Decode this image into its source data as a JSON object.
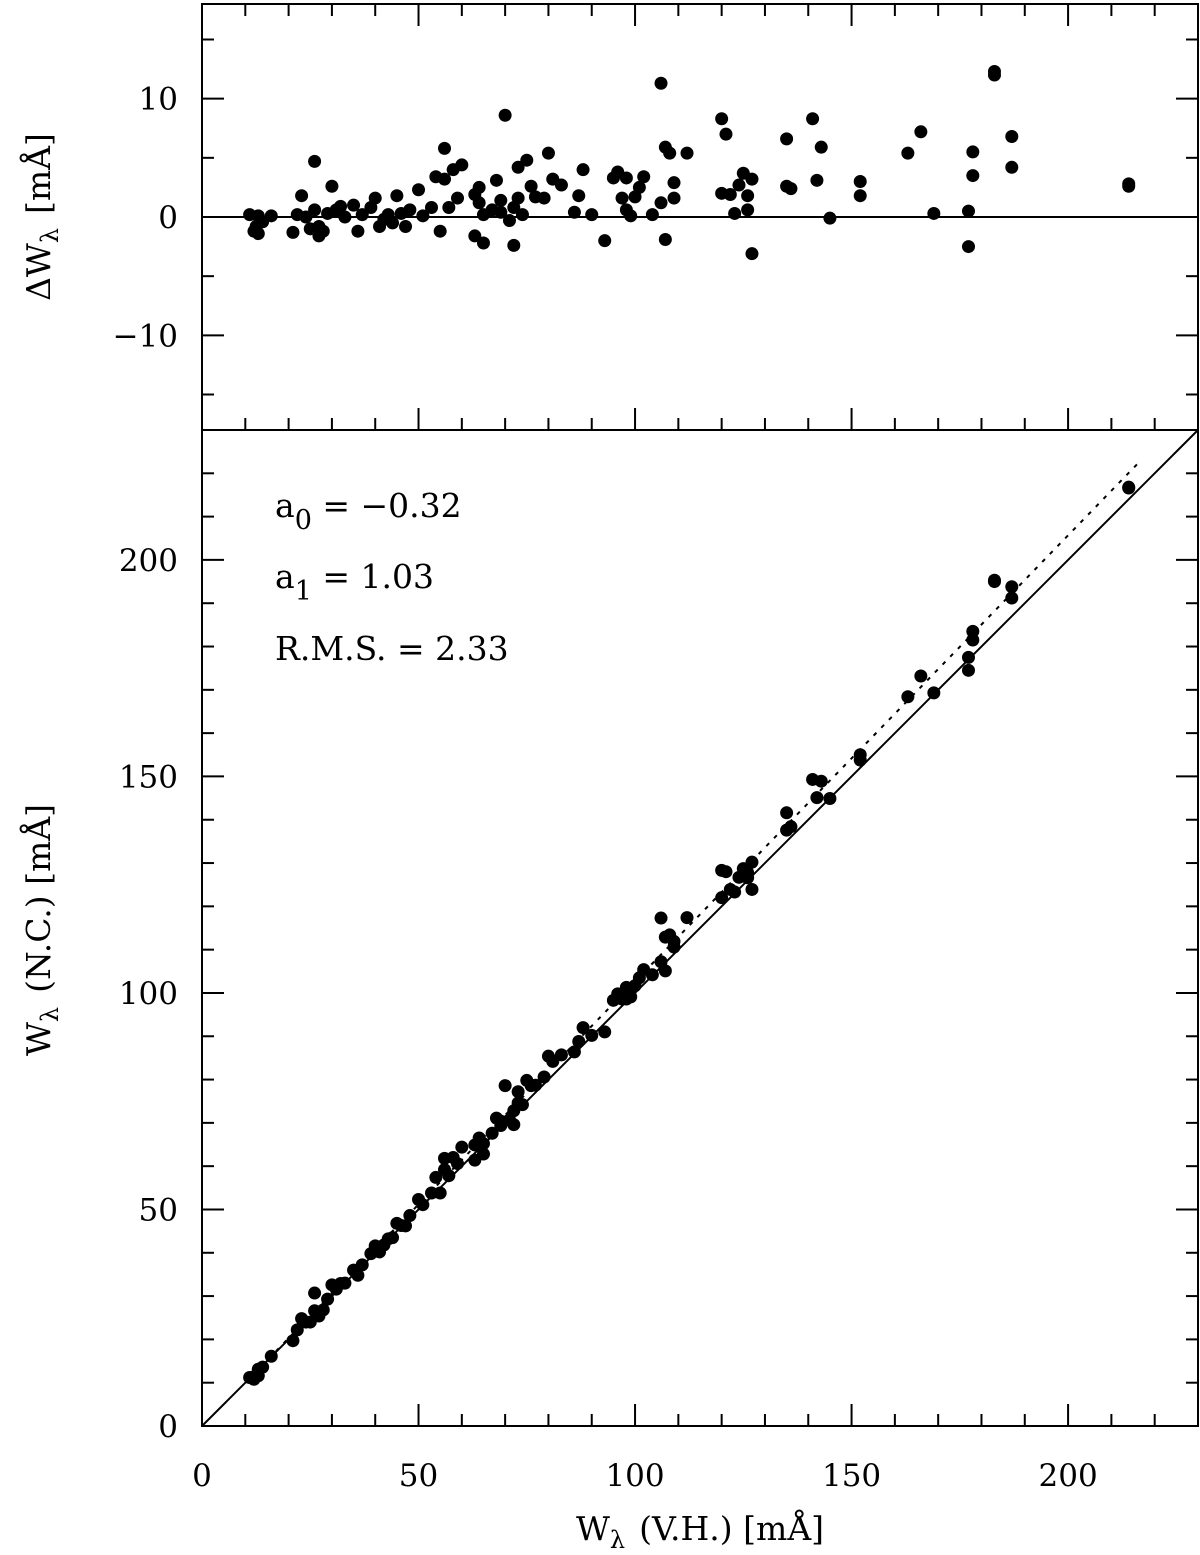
{
  "chart_data": [
    {
      "panel": "residuals",
      "type": "scatter",
      "ylabel": "ΔW_λ [mÅ]",
      "ylim": [
        -18,
        18
      ],
      "xlim": [
        0,
        230
      ],
      "yticks": [
        -10,
        0,
        10
      ],
      "ytick_labels": [
        "−10",
        "0",
        "10"
      ],
      "reference_line_y": 0,
      "points": [
        [
          11,
          0.2
        ],
        [
          12,
          -1.2
        ],
        [
          12.5,
          -0.8
        ],
        [
          13,
          -1.4
        ],
        [
          13,
          0.1
        ],
        [
          14,
          -0.4
        ],
        [
          16,
          0.1
        ],
        [
          21,
          -1.3
        ],
        [
          22,
          0.2
        ],
        [
          23,
          1.8
        ],
        [
          24,
          0
        ],
        [
          25,
          -1
        ],
        [
          26,
          0.6
        ],
        [
          26,
          4.7
        ],
        [
          27,
          -0.8
        ],
        [
          27,
          -1.6
        ],
        [
          28,
          -1.2
        ],
        [
          29,
          0.3
        ],
        [
          30,
          2.6
        ],
        [
          31,
          0.6
        ],
        [
          32,
          0.9
        ],
        [
          33,
          0
        ],
        [
          35,
          1
        ],
        [
          36,
          -1.2
        ],
        [
          37,
          0.2
        ],
        [
          39,
          0.8
        ],
        [
          40,
          1.6
        ],
        [
          41,
          -0.8
        ],
        [
          42,
          -0.2
        ],
        [
          43,
          0.2
        ],
        [
          44,
          -0.5
        ],
        [
          45,
          1.8
        ],
        [
          46,
          0.3
        ],
        [
          47,
          -0.8
        ],
        [
          48,
          0.6
        ],
        [
          50,
          2.3
        ],
        [
          51,
          0.1
        ],
        [
          53,
          0.8
        ],
        [
          54,
          3.4
        ],
        [
          55,
          -1.2
        ],
        [
          56,
          5.8
        ],
        [
          56,
          3.2
        ],
        [
          57,
          0.8
        ],
        [
          58,
          4
        ],
        [
          59,
          1.6
        ],
        [
          60,
          4.4
        ],
        [
          63,
          -1.6
        ],
        [
          63,
          1.9
        ],
        [
          64,
          1.2
        ],
        [
          64,
          2.5
        ],
        [
          65,
          -2.2
        ],
        [
          65,
          0.2
        ],
        [
          67,
          0.6
        ],
        [
          68,
          3.1
        ],
        [
          69,
          1.4
        ],
        [
          69,
          0.4
        ],
        [
          70,
          8.6
        ],
        [
          71,
          -0.3
        ],
        [
          72,
          -2.4
        ],
        [
          72,
          0.8
        ],
        [
          73,
          4.2
        ],
        [
          73,
          1.6
        ],
        [
          74,
          0.2
        ],
        [
          75,
          4.8
        ],
        [
          76,
          2.6
        ],
        [
          77,
          1.7
        ],
        [
          79,
          1.6
        ],
        [
          80,
          5.4
        ],
        [
          81,
          3.2
        ],
        [
          83,
          2.7
        ],
        [
          86,
          0.4
        ],
        [
          87,
          1.8
        ],
        [
          88,
          4
        ],
        [
          90,
          0.2
        ],
        [
          93,
          -2
        ],
        [
          95,
          3.3
        ],
        [
          96,
          3.8
        ],
        [
          97,
          1.6
        ],
        [
          98,
          0.6
        ],
        [
          98,
          3.3
        ],
        [
          99,
          0.1
        ],
        [
          100,
          1.7
        ],
        [
          101,
          2.5
        ],
        [
          102,
          3.4
        ],
        [
          104,
          0.2
        ],
        [
          106,
          11.3
        ],
        [
          106,
          1.2
        ],
        [
          107,
          -1.9
        ],
        [
          107,
          5.9
        ],
        [
          108,
          5.4
        ],
        [
          109,
          2.9
        ],
        [
          109,
          1.6
        ],
        [
          112,
          5.4
        ],
        [
          120,
          2
        ],
        [
          120,
          8.3
        ],
        [
          121,
          7
        ],
        [
          122,
          1.9
        ],
        [
          123,
          0.3
        ],
        [
          124,
          2.7
        ],
        [
          125,
          3.7
        ],
        [
          126,
          0.6
        ],
        [
          126,
          1.8
        ],
        [
          127,
          3.2
        ],
        [
          127,
          -3.1
        ],
        [
          135,
          6.6
        ],
        [
          135,
          2.6
        ],
        [
          136,
          2.4
        ],
        [
          141,
          8.3
        ],
        [
          142,
          3.1
        ],
        [
          143,
          5.9
        ],
        [
          145,
          -0.1
        ],
        [
          152,
          3
        ],
        [
          152,
          1.8
        ],
        [
          163,
          5.4
        ],
        [
          166,
          7.2
        ],
        [
          169,
          0.3
        ],
        [
          177,
          -2.5
        ],
        [
          177,
          0.5
        ],
        [
          178,
          5.5
        ],
        [
          178,
          3.5
        ],
        [
          183,
          12.3
        ],
        [
          183,
          12
        ],
        [
          187,
          6.8
        ],
        [
          187,
          4.2
        ],
        [
          214,
          2.8
        ],
        [
          214,
          2.6
        ]
      ]
    },
    {
      "panel": "comparison",
      "type": "scatter",
      "xlabel": "W_λ (V.H.) [mÅ]",
      "ylabel": "W_λ (N.C.) [mÅ]",
      "xlim": [
        0,
        230
      ],
      "ylim": [
        0,
        230
      ],
      "xticks": [
        0,
        50,
        100,
        150,
        200
      ],
      "yticks": [
        0,
        50,
        100,
        150,
        200
      ],
      "reference_line": "y = x",
      "fit_line": {
        "a0": -0.32,
        "a1": 1.03,
        "style": "dotted"
      },
      "annotations": {
        "a0": "a₀ = −0.32",
        "a1": "a₁ = 1.03",
        "rms": "R.M.S. = 2.33"
      },
      "points": [
        [
          11,
          11.2
        ],
        [
          12,
          10.8
        ],
        [
          12.5,
          11.7
        ],
        [
          13,
          11.6
        ],
        [
          13,
          13.1
        ],
        [
          14,
          13.6
        ],
        [
          16,
          16.1
        ],
        [
          21,
          19.7
        ],
        [
          22,
          22.2
        ],
        [
          23,
          24.8
        ],
        [
          24,
          24
        ],
        [
          25,
          24
        ],
        [
          26,
          26.6
        ],
        [
          26,
          30.7
        ],
        [
          27,
          26.2
        ],
        [
          27,
          25.4
        ],
        [
          28,
          26.8
        ],
        [
          29,
          29.3
        ],
        [
          30,
          32.6
        ],
        [
          31,
          31.6
        ],
        [
          32,
          32.9
        ],
        [
          33,
          33
        ],
        [
          35,
          36
        ],
        [
          36,
          34.8
        ],
        [
          37,
          37.2
        ],
        [
          39,
          39.8
        ],
        [
          40,
          41.6
        ],
        [
          41,
          40.2
        ],
        [
          42,
          41.8
        ],
        [
          43,
          43.2
        ],
        [
          44,
          43.5
        ],
        [
          45,
          46.8
        ],
        [
          46,
          46.3
        ],
        [
          47,
          46.2
        ],
        [
          48,
          48.6
        ],
        [
          50,
          52.3
        ],
        [
          51,
          51.1
        ],
        [
          53,
          53.8
        ],
        [
          54,
          57.4
        ],
        [
          55,
          53.8
        ],
        [
          56,
          61.8
        ],
        [
          56,
          59.2
        ],
        [
          57,
          57.8
        ],
        [
          58,
          62
        ],
        [
          59,
          60.6
        ],
        [
          60,
          64.4
        ],
        [
          63,
          61.4
        ],
        [
          63,
          64.9
        ],
        [
          64,
          65.2
        ],
        [
          64,
          66.5
        ],
        [
          65,
          62.8
        ],
        [
          65,
          65.2
        ],
        [
          67,
          67.6
        ],
        [
          68,
          71.1
        ],
        [
          69,
          70.4
        ],
        [
          69,
          69.4
        ],
        [
          70,
          78.6
        ],
        [
          71,
          70.7
        ],
        [
          72,
          69.6
        ],
        [
          72,
          72.8
        ],
        [
          73,
          77.2
        ],
        [
          73,
          74.6
        ],
        [
          74,
          74.2
        ],
        [
          75,
          79.8
        ],
        [
          76,
          78.6
        ],
        [
          77,
          78.7
        ],
        [
          79,
          80.6
        ],
        [
          80,
          85.4
        ],
        [
          81,
          84.2
        ],
        [
          83,
          85.7
        ],
        [
          86,
          86.4
        ],
        [
          87,
          88.8
        ],
        [
          88,
          92
        ],
        [
          90,
          90.2
        ],
        [
          93,
          91
        ],
        [
          95,
          98.3
        ],
        [
          96,
          99.8
        ],
        [
          97,
          98.6
        ],
        [
          98,
          98.6
        ],
        [
          98,
          101.3
        ],
        [
          99,
          99.1
        ],
        [
          100,
          101.7
        ],
        [
          101,
          103.5
        ],
        [
          102,
          105.4
        ],
        [
          104,
          104.2
        ],
        [
          106,
          117.3
        ],
        [
          106,
          107.2
        ],
        [
          107,
          105.1
        ],
        [
          107,
          112.9
        ],
        [
          108,
          113.4
        ],
        [
          109,
          111.9
        ],
        [
          109,
          110.6
        ],
        [
          112,
          117.4
        ],
        [
          120,
          122
        ],
        [
          120,
          128.3
        ],
        [
          121,
          128
        ],
        [
          122,
          123.9
        ],
        [
          123,
          123.3
        ],
        [
          124,
          126.7
        ],
        [
          125,
          128.7
        ],
        [
          126,
          126.6
        ],
        [
          126,
          127.8
        ],
        [
          127,
          130.2
        ],
        [
          127,
          123.9
        ],
        [
          135,
          141.6
        ],
        [
          135,
          137.6
        ],
        [
          136,
          138.4
        ],
        [
          141,
          149.3
        ],
        [
          142,
          145.1
        ],
        [
          143,
          148.9
        ],
        [
          145,
          144.9
        ],
        [
          152,
          155
        ],
        [
          152,
          153.8
        ],
        [
          163,
          168.4
        ],
        [
          166,
          173.2
        ],
        [
          169,
          169.3
        ],
        [
          177,
          174.5
        ],
        [
          177,
          177.5
        ],
        [
          178,
          183.5
        ],
        [
          178,
          181.5
        ],
        [
          183,
          195.3
        ],
        [
          183,
          195
        ],
        [
          187,
          193.8
        ],
        [
          187,
          191.2
        ],
        [
          214,
          216.8
        ],
        [
          214,
          216.6
        ]
      ]
    }
  ],
  "labels": {
    "top_y_title": "ΔW",
    "top_y_sub": "λ",
    "top_y_unit": "[mÅ]",
    "bottom_y_title": "W",
    "bottom_y_sub": "λ",
    "bottom_y_rest": "(N.C.) [mÅ]",
    "x_title": "W",
    "x_sub": "λ",
    "x_rest": "(V.H.) [mÅ]",
    "annot_a0_main": "a",
    "annot_a0_sub": "0",
    "annot_a0_rest": " = −0.32",
    "annot_a1_main": "a",
    "annot_a1_sub": "1",
    "annot_a1_rest": " = 1.03",
    "annot_rms": "R.M.S. = 2.33"
  }
}
